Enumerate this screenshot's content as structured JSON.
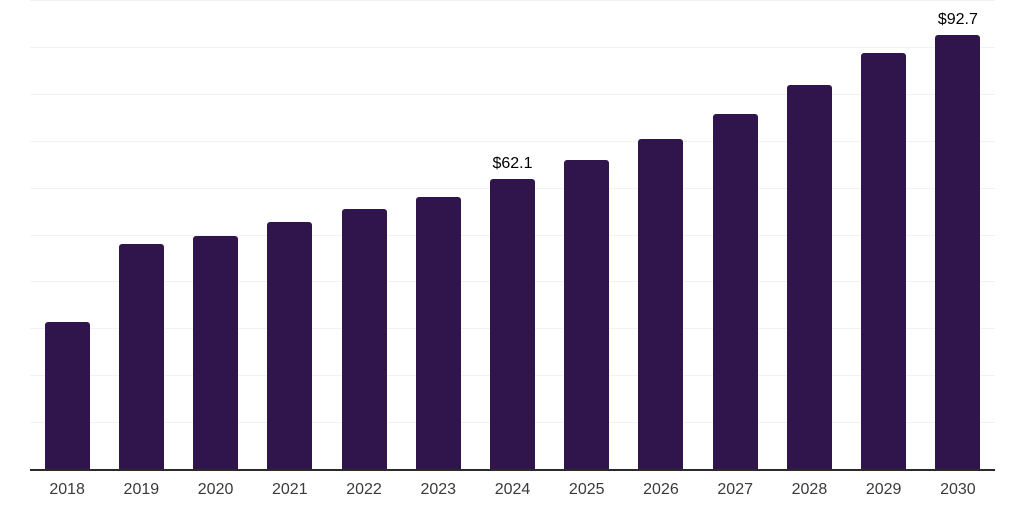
{
  "chart_data": {
    "type": "bar",
    "title": "",
    "xlabel": "",
    "ylabel": "",
    "categories": [
      "2018",
      "2019",
      "2020",
      "2021",
      "2022",
      "2023",
      "2024",
      "2025",
      "2026",
      "2027",
      "2028",
      "2029",
      "2030"
    ],
    "values": [
      31.5,
      48.1,
      50.0,
      52.8,
      55.6,
      58.3,
      62.1,
      66.2,
      70.5,
      75.9,
      82.1,
      88.9,
      92.7
    ],
    "bar_labels": [
      "",
      "",
      "",
      "",
      "",
      "",
      "$62.1",
      "",
      "",
      "",
      "",
      "",
      "$92.7"
    ],
    "ylim": [
      0,
      100
    ],
    "grid_step": 10,
    "grid": "horizontal",
    "legend": "none",
    "y_axis_tick_labels": "hidden",
    "colors": {
      "bar": "#30154c",
      "bar_label_text": "#000000",
      "tick_label_text": "#3a3a3a",
      "gridline": "#f2f2f2",
      "axis_line": "#2b2b2b",
      "background": "#ffffff"
    }
  }
}
